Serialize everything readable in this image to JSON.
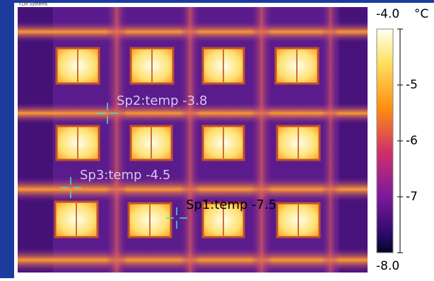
{
  "brand": "FLIR Systems",
  "spots": [
    {
      "label": "Sp2:temp -3.8"
    },
    {
      "label": "Sp3:temp -4.5"
    },
    {
      "label": "Sp1:temp -7.5"
    }
  ],
  "scale": {
    "unit": "°C",
    "lim": [
      -8,
      -4
    ],
    "ticks": [
      {
        "value": -4,
        "label": "-4.0"
      },
      -5,
      -6,
      -7,
      {
        "value": -8,
        "label": "-8.0"
      }
    ]
  }
}
